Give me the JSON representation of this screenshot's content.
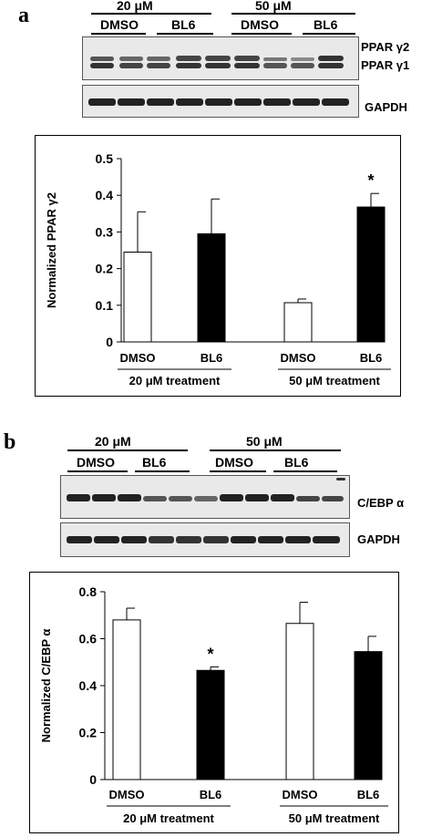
{
  "panels": [
    {
      "id": "a",
      "letter": "a",
      "conc_labels": [
        "20 μM",
        "50 μM"
      ],
      "group_labels": [
        "DMSO",
        "BL6",
        "DMSO",
        "BL6"
      ],
      "blot_labels": [
        "PPAR γ2",
        "PPAR γ1",
        "GAPDH"
      ]
    },
    {
      "id": "b",
      "letter": "b",
      "conc_labels": [
        "20 μM",
        "50 μM"
      ],
      "group_labels": [
        "DMSO",
        "BL6",
        "DMSO",
        "BL6"
      ],
      "blot_labels": [
        "C/EBP α",
        "GAPDH"
      ]
    }
  ],
  "chart_data": [
    {
      "type": "bar",
      "ylabel": "Normalized PPAR γ2",
      "categories": [
        "DMSO",
        "BL6",
        "DMSO",
        "BL6"
      ],
      "values": [
        0.245,
        0.295,
        0.107,
        0.368
      ],
      "errors": [
        0.11,
        0.095,
        0.01,
        0.037
      ],
      "bar_fill": [
        "#ffffff",
        "#000000",
        "#ffffff",
        "#000000"
      ],
      "significant": [
        false,
        false,
        false,
        true
      ],
      "sig_marker": "*",
      "groups": [
        "20 μM treatment",
        "50 μM treatment"
      ],
      "ylim": [
        0,
        0.5
      ],
      "yticks": [
        0,
        0.1,
        0.2,
        0.3,
        0.4,
        0.5
      ],
      "ytick_labels": [
        "0",
        "0.1",
        "0.2",
        "0.3",
        "0.4",
        "0.5"
      ]
    },
    {
      "type": "bar",
      "ylabel": "Normalized C/EBP α",
      "categories": [
        "DMSO",
        "BL6",
        "DMSO",
        "BL6"
      ],
      "values": [
        0.68,
        0.465,
        0.665,
        0.545
      ],
      "errors": [
        0.05,
        0.015,
        0.09,
        0.065
      ],
      "bar_fill": [
        "#ffffff",
        "#000000",
        "#ffffff",
        "#000000"
      ],
      "significant": [
        false,
        true,
        false,
        false
      ],
      "sig_marker": "*",
      "groups": [
        "20 μM treatment",
        "50 μM treatment"
      ],
      "ylim": [
        0,
        0.8
      ],
      "yticks": [
        0,
        0.2,
        0.4,
        0.6,
        0.8
      ],
      "ytick_labels": [
        "0",
        "0.2",
        "0.4",
        "0.6",
        "0.8"
      ]
    }
  ]
}
